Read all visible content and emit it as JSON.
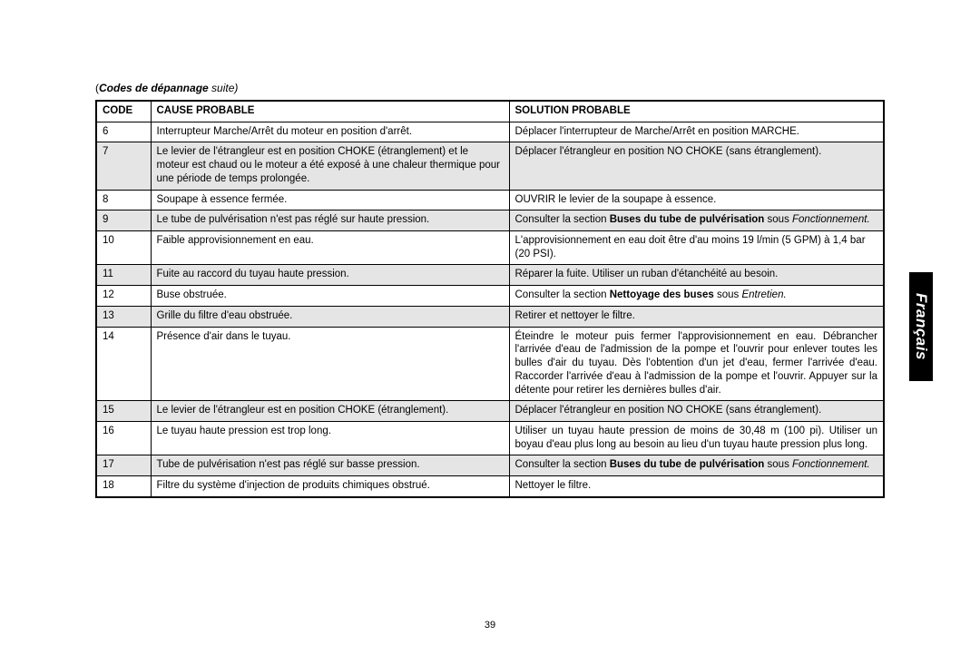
{
  "caption_prefix": "(",
  "caption_bold": "Codes de dépannage",
  "caption_tail": " suite)",
  "side_tab": "Français",
  "page_number": "39",
  "headers": {
    "code": "CODE",
    "cause": "CAUSE PROBABLE",
    "solution": "SOLUTION PROBABLE"
  },
  "rows": [
    {
      "code": "6",
      "shaded": false,
      "cause": "Interrupteur Marche/Arrêt du moteur en position d'arrêt.",
      "solution": [
        {
          "t": "Déplacer l'interrupteur de Marche/Arrêt en position MARCHE."
        }
      ]
    },
    {
      "code": "7",
      "shaded": true,
      "cause": "Le levier de l'étrangleur est en position CHOKE (étranglement) et le moteur est chaud ou le moteur a été exposé à une chaleur thermique pour une période de temps prolongée.",
      "solution": [
        {
          "t": "Déplacer l'étrangleur en position NO CHOKE (sans étranglement)."
        }
      ]
    },
    {
      "code": "8",
      "shaded": false,
      "cause": "Soupape à essence fermée.",
      "solution": [
        {
          "t": "OUVRIR le levier de la soupape à essence."
        }
      ]
    },
    {
      "code": "9",
      "shaded": true,
      "justify": true,
      "cause": "Le tube de pulvérisation n'est pas réglé sur haute pression.",
      "solution": [
        {
          "t": "Consulter la section "
        },
        {
          "t": "Buses du tube de pulvérisation",
          "bold": true
        },
        {
          "t": " sous "
        },
        {
          "t": "Fonctionnement.",
          "ital": true
        }
      ]
    },
    {
      "code": "10",
      "shaded": false,
      "cause": "Faible approvisionnement en eau.",
      "solution": [
        {
          "t": "L'approvisionnement en eau doit être d'au moins 19 l/min (5 GPM) à 1,4 bar (20 PSI)."
        }
      ]
    },
    {
      "code": "11",
      "shaded": true,
      "cause": "Fuite au raccord du tuyau haute pression.",
      "solution": [
        {
          "t": "Réparer la fuite. Utiliser un ruban d'étanchéité au besoin."
        }
      ]
    },
    {
      "code": "12",
      "shaded": false,
      "cause": "Buse obstruée.",
      "solution": [
        {
          "t": "Consulter la section "
        },
        {
          "t": "Nettoyage des buses",
          "bold": true
        },
        {
          "t": " sous "
        },
        {
          "t": "Entretien.",
          "ital": true
        }
      ]
    },
    {
      "code": "13",
      "shaded": true,
      "cause": "Grille du filtre d'eau obstruée.",
      "solution": [
        {
          "t": "Retirer et nettoyer le filtre."
        }
      ]
    },
    {
      "code": "14",
      "shaded": false,
      "justify": true,
      "cause": "Présence d'air dans le tuyau.",
      "solution": [
        {
          "t": "Éteindre le moteur puis fermer l'approvisionnement en eau. Débrancher l'arrivée d'eau de l'admission de la pompe et l'ouvrir pour enlever toutes les bulles d'air du tuyau. Dès l'obtention d'un jet d'eau, fermer l'arrivée d'eau. Raccorder l'arrivée d'eau à l'admission de la pompe et l'ouvrir. Appuyer sur la détente pour retirer les dernières bulles d'air."
        }
      ]
    },
    {
      "code": "15",
      "shaded": true,
      "cause": "Le levier de l'étrangleur est en position CHOKE (étranglement).",
      "solution": [
        {
          "t": "Déplacer l'étrangleur en position NO CHOKE (sans étranglement)."
        }
      ]
    },
    {
      "code": "16",
      "shaded": false,
      "justify": true,
      "cause": "Le tuyau haute pression est trop long.",
      "solution": [
        {
          "t": "Utiliser un tuyau haute pression de moins de 30,48 m (100 pi). Utiliser un boyau d'eau plus long au besoin au lieu d'un tuyau haute pression plus long."
        }
      ]
    },
    {
      "code": "17",
      "shaded": true,
      "justify": true,
      "cause": "Tube de pulvérisation n'est pas réglé sur basse pression.",
      "solution": [
        {
          "t": "Consulter la section "
        },
        {
          "t": "Buses du tube de pulvérisation",
          "bold": true
        },
        {
          "t": " sous "
        },
        {
          "t": "Fonctionnement.",
          "ital": true
        }
      ]
    },
    {
      "code": "18",
      "shaded": false,
      "cause": "Filtre du système d'injection de produits chimiques obstrué.",
      "solution": [
        {
          "t": "Nettoyer le filtre."
        }
      ]
    }
  ]
}
